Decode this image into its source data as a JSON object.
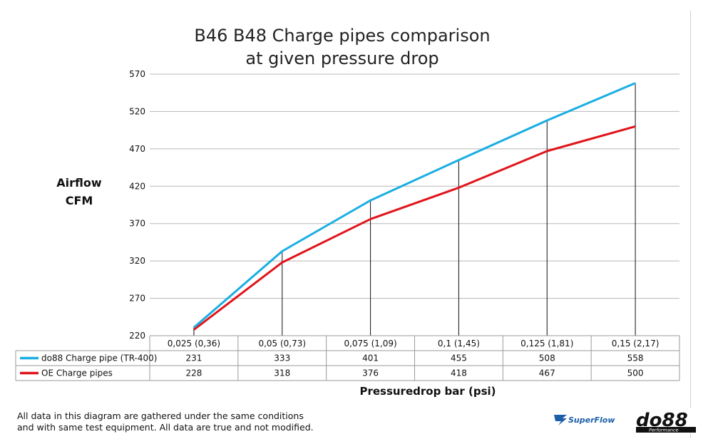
{
  "chart_data": {
    "type": "line",
    "title": "B46 B48 Charge pipes comparison",
    "subtitle": "at given pressure drop",
    "ylabel": [
      "Airflow",
      "CFM"
    ],
    "xlabel": "Pressuredrop bar (psi)",
    "categories": [
      "0,025 (0,36)",
      "0,05 (0,73)",
      "0,075 (1,09)",
      "0,1 (1,45)",
      "0,125 (1,81)",
      "0,15 (2,17)"
    ],
    "ylim": [
      220,
      570
    ],
    "yticks": [
      220,
      270,
      320,
      370,
      420,
      470,
      520,
      570
    ],
    "grid": true,
    "legend": "data-table-below",
    "series": [
      {
        "name": "do88 Charge pipe (TR-400)",
        "color": "#1aaee2",
        "values": [
          231,
          333,
          401,
          455,
          508,
          558
        ]
      },
      {
        "name": "OE Charge pipes",
        "color": "#e0141b",
        "values": [
          228,
          318,
          376,
          418,
          467,
          500
        ]
      }
    ]
  },
  "footnote": {
    "line1": "All data in this diagram are gathered under the same conditions",
    "line2": "and with same test equipment. All data are true and not modified."
  },
  "logos": {
    "superflow": "SuperFlow",
    "do88": "do88",
    "do88_sub": "Performance"
  }
}
